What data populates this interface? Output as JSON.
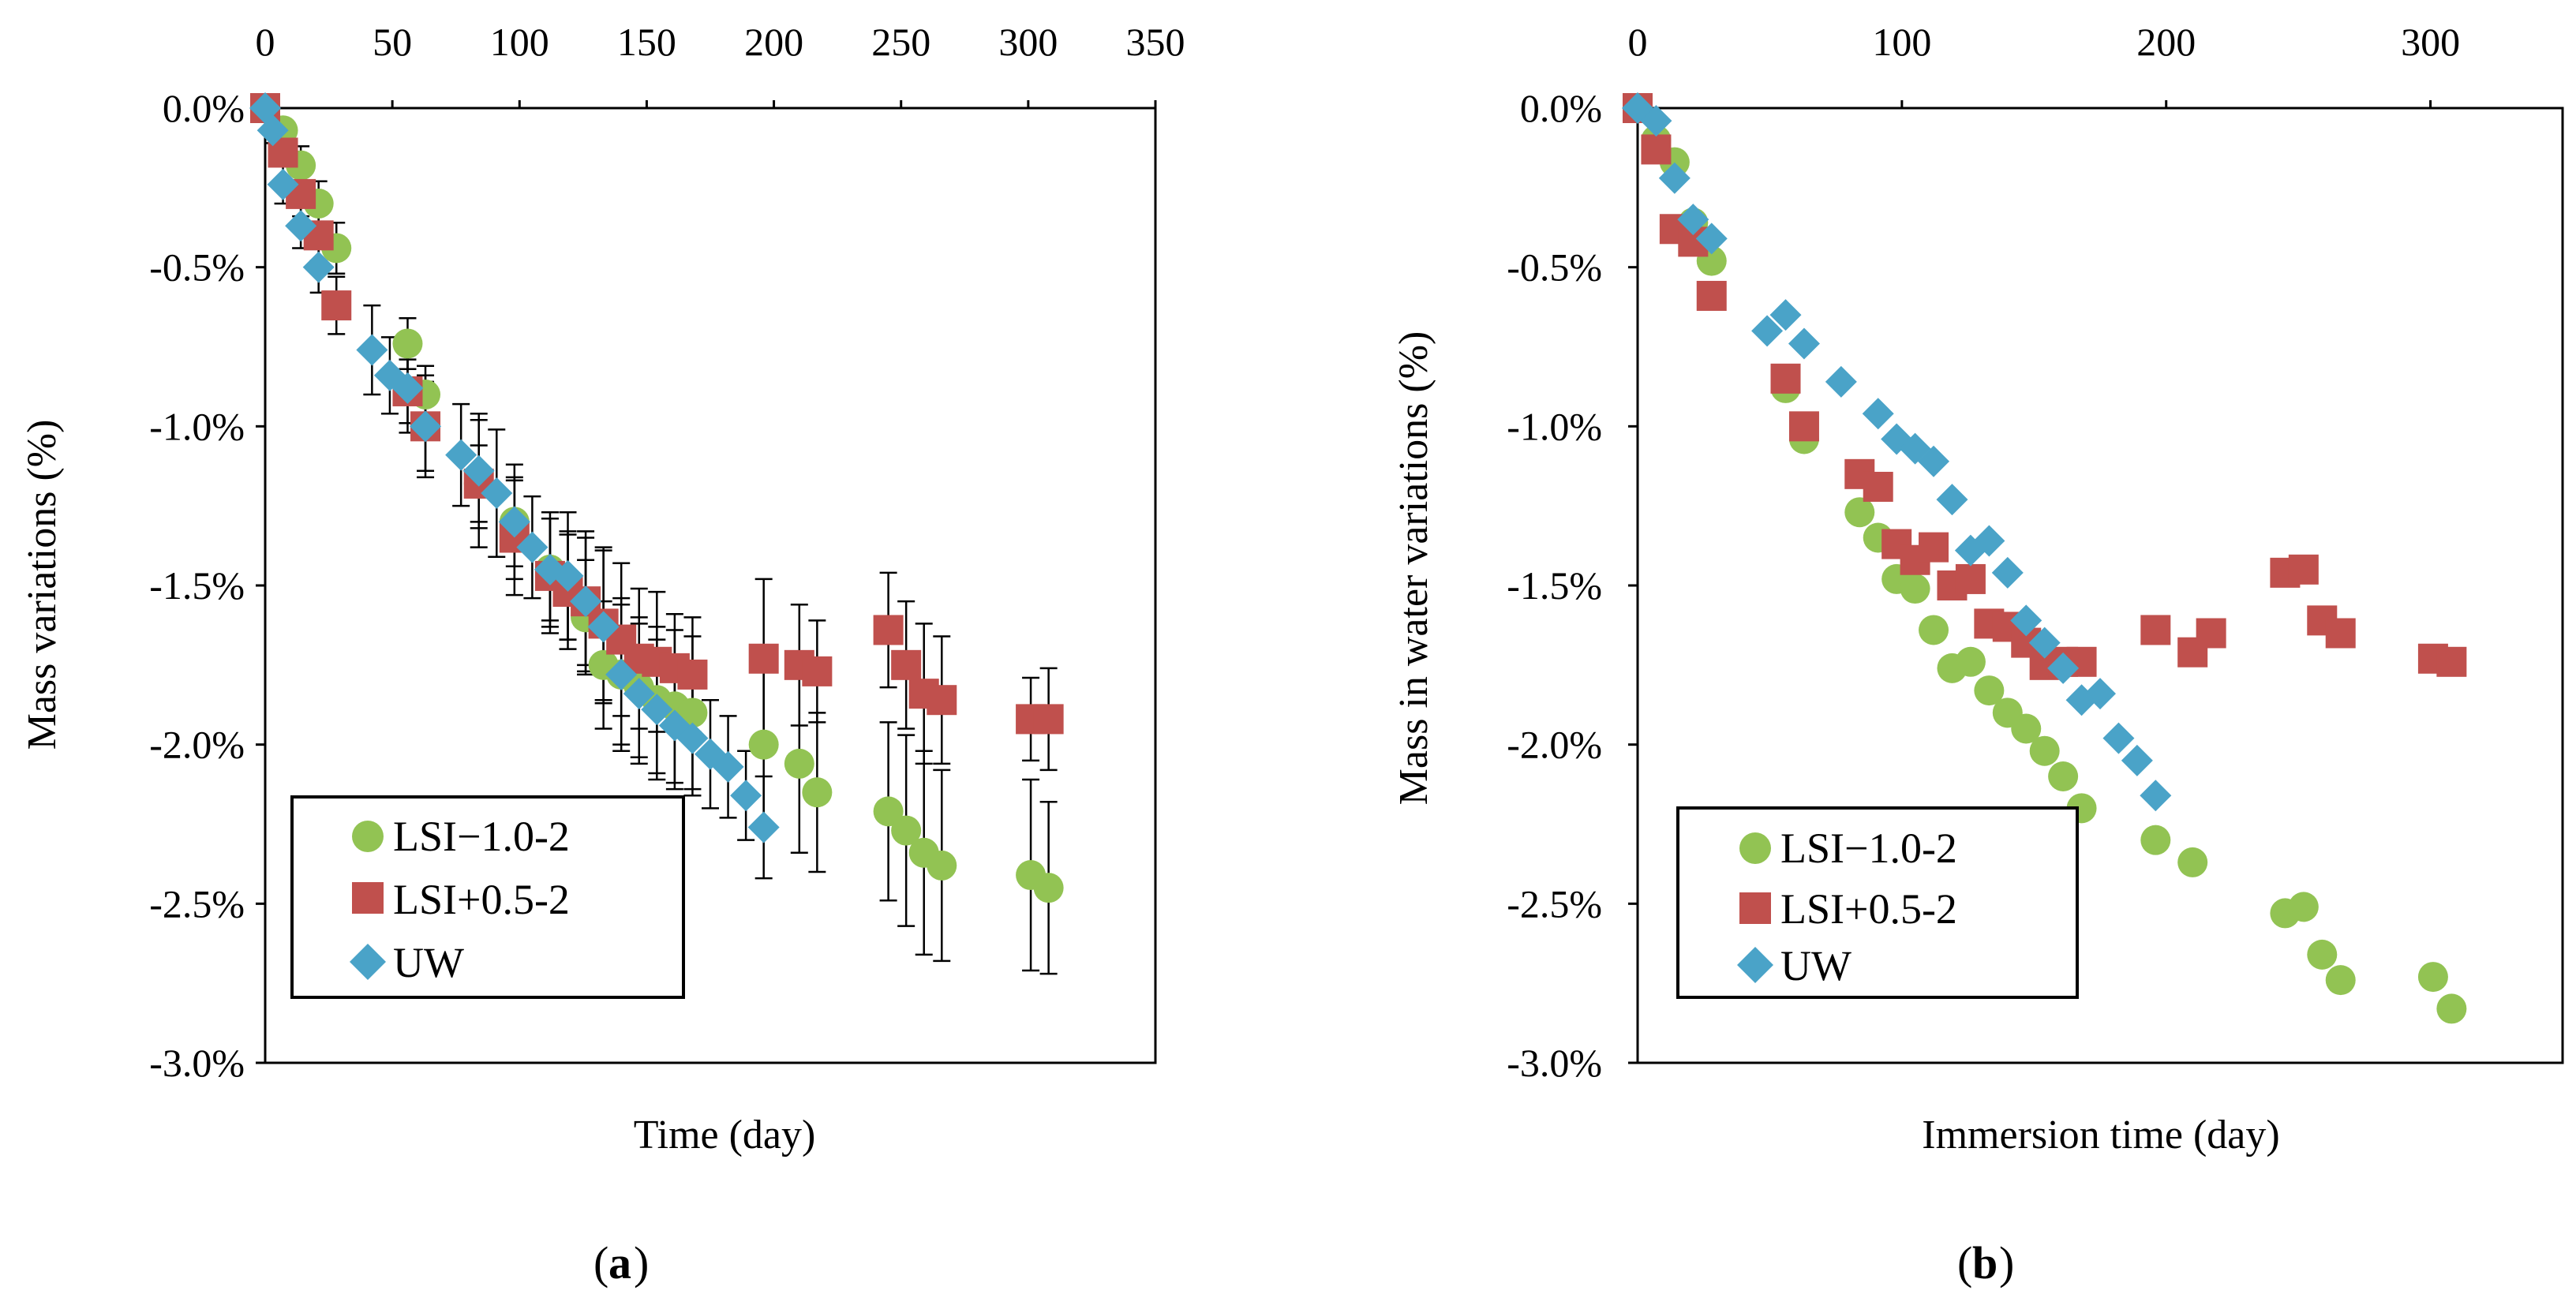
{
  "colors": {
    "green": "#92c353",
    "red": "#c0504d",
    "blue": "#4aa3c8"
  },
  "chart_data": [
    {
      "id": "a",
      "type": "scatter",
      "panel_label": "a",
      "xlabel": "Time (day)",
      "ylabel": "Mass variations  (%)",
      "x_axis_position": "top",
      "xlim": [
        0,
        350
      ],
      "ylim": [
        -3.0,
        0.0
      ],
      "xticks": [
        0,
        50,
        100,
        150,
        200,
        250,
        300,
        350
      ],
      "xtick_labels": [
        "0",
        "50",
        "100",
        "150",
        "200",
        "250",
        "300",
        "350"
      ],
      "yticks": [
        0.0,
        -0.5,
        -1.0,
        -1.5,
        -2.0,
        -2.5,
        -3.0
      ],
      "ytick_labels": [
        "0.0%",
        "-0.5%",
        "-1.0%",
        "-1.5%",
        "-2.0%",
        "-2.5%",
        "-3.0%"
      ],
      "grid": false,
      "legend_position": "bottom-left",
      "error_bars": true,
      "series": [
        {
          "name": "LSI−1.0-2",
          "marker": "circle",
          "color": "#92c353",
          "x": [
            0,
            7,
            14,
            21,
            28,
            56,
            63,
            84,
            98,
            112,
            119,
            126,
            133,
            140,
            147,
            154,
            161,
            168,
            196,
            210,
            217,
            245,
            252,
            259,
            266,
            301,
            308
          ],
          "y": [
            0.0,
            -0.07,
            -0.18,
            -0.3,
            -0.44,
            -0.74,
            -0.9,
            -1.18,
            -1.3,
            -1.45,
            -1.5,
            -1.6,
            -1.75,
            -1.78,
            -1.82,
            -1.86,
            -1.88,
            -1.9,
            -2.0,
            -2.06,
            -2.15,
            -2.21,
            -2.27,
            -2.34,
            -2.38,
            -2.41,
            -2.45
          ],
          "err": [
            0.0,
            0.03,
            0.06,
            0.07,
            0.08,
            0.08,
            0.09,
            0.12,
            0.14,
            0.16,
            0.17,
            0.18,
            0.2,
            0.22,
            0.22,
            0.23,
            0.24,
            0.24,
            0.26,
            0.28,
            0.25,
            0.28,
            0.3,
            0.32,
            0.3,
            0.3,
            0.27
          ]
        },
        {
          "name": "LSI+0.5-2",
          "marker": "square",
          "color": "#c0504d",
          "x": [
            0,
            7,
            14,
            21,
            28,
            56,
            63,
            84,
            98,
            112,
            119,
            126,
            133,
            140,
            147,
            154,
            161,
            168,
            196,
            210,
            217,
            245,
            252,
            259,
            266,
            301,
            308
          ],
          "y": [
            0.0,
            -0.14,
            -0.27,
            -0.4,
            -0.62,
            -0.89,
            -1.0,
            -1.18,
            -1.35,
            -1.47,
            -1.52,
            -1.55,
            -1.62,
            -1.67,
            -1.73,
            -1.74,
            -1.76,
            -1.78,
            -1.73,
            -1.75,
            -1.77,
            -1.64,
            -1.75,
            -1.84,
            -1.86,
            -1.92,
            -1.92
          ],
          "err": [
            0.0,
            0.04,
            0.07,
            0.08,
            0.09,
            0.1,
            0.14,
            0.2,
            0.18,
            0.18,
            0.18,
            0.2,
            0.24,
            0.24,
            0.22,
            0.22,
            0.17,
            0.18,
            0.25,
            0.19,
            0.16,
            0.18,
            0.2,
            0.22,
            0.2,
            0.13,
            0.16
          ]
        },
        {
          "name": "UW",
          "marker": "diamond",
          "color": "#4aa3c8",
          "x": [
            0,
            3,
            7,
            14,
            21,
            42,
            49,
            56,
            63,
            77,
            84,
            91,
            98,
            105,
            112,
            119,
            126,
            133,
            140,
            147,
            154,
            161,
            168,
            175,
            182,
            189,
            196
          ],
          "y": [
            0.0,
            -0.07,
            -0.24,
            -0.37,
            -0.5,
            -0.76,
            -0.84,
            -0.88,
            -1.0,
            -1.09,
            -1.14,
            -1.21,
            -1.3,
            -1.38,
            -1.45,
            -1.47,
            -1.55,
            -1.63,
            -1.78,
            -1.84,
            -1.89,
            -1.94,
            -1.98,
            -2.03,
            -2.07,
            -2.16,
            -2.26
          ],
          "err": [
            0.0,
            0.04,
            0.06,
            0.07,
            0.08,
            0.14,
            0.12,
            0.14,
            0.16,
            0.16,
            0.18,
            0.2,
            0.18,
            0.16,
            0.18,
            0.2,
            0.22,
            0.24,
            0.24,
            0.22,
            0.22,
            0.2,
            0.18,
            0.17,
            0.16,
            0.14,
            0.16
          ]
        }
      ]
    },
    {
      "id": "b",
      "type": "scatter",
      "panel_label": "b",
      "xlabel": "Immersion time (day)",
      "ylabel": "Mass in water variations  (%)",
      "x_axis_position": "top",
      "xlim": [
        0,
        350
      ],
      "ylim": [
        -3.0,
        0.0
      ],
      "xticks": [
        0,
        100,
        200,
        300
      ],
      "xtick_labels": [
        "0",
        "100",
        "200",
        "300"
      ],
      "yticks": [
        0.0,
        -0.5,
        -1.0,
        -1.5,
        -2.0,
        -2.5,
        -3.0
      ],
      "ytick_labels": [
        "0.0%",
        "-0.5%",
        "-1.0%",
        "-1.5%",
        "-2.0%",
        "-2.5%",
        "-3.0%"
      ],
      "grid": false,
      "legend_position": "bottom-left",
      "error_bars": false,
      "series": [
        {
          "name": "LSI−1.0-2",
          "marker": "circle",
          "color": "#92c353",
          "x": [
            0,
            7,
            14,
            21,
            28,
            56,
            63,
            84,
            91,
            98,
            105,
            112,
            119,
            126,
            133,
            140,
            147,
            154,
            161,
            168,
            196,
            210,
            245,
            252,
            259,
            266,
            301,
            308
          ],
          "y": [
            0.0,
            -0.1,
            -0.17,
            -0.36,
            -0.48,
            -0.88,
            -1.04,
            -1.27,
            -1.35,
            -1.48,
            -1.51,
            -1.64,
            -1.76,
            -1.74,
            -1.83,
            -1.9,
            -1.95,
            -2.02,
            -2.1,
            -2.2,
            -2.3,
            -2.37,
            -2.53,
            -2.51,
            -2.66,
            -2.74,
            -2.73,
            -2.83
          ]
        },
        {
          "name": "LSI+0.5-2",
          "marker": "square",
          "color": "#c0504d",
          "x": [
            0,
            7,
            14,
            21,
            28,
            56,
            63,
            84,
            91,
            98,
            105,
            112,
            119,
            126,
            133,
            140,
            147,
            154,
            161,
            168,
            196,
            210,
            217,
            245,
            252,
            259,
            266,
            301,
            308
          ],
          "y": [
            0.0,
            -0.13,
            -0.38,
            -0.42,
            -0.59,
            -0.85,
            -1.0,
            -1.15,
            -1.19,
            -1.37,
            -1.42,
            -1.38,
            -1.5,
            -1.48,
            -1.62,
            -1.63,
            -1.68,
            -1.75,
            -1.74,
            -1.74,
            -1.64,
            -1.71,
            -1.65,
            -1.46,
            -1.45,
            -1.61,
            -1.65,
            -1.73,
            -1.74
          ]
        },
        {
          "name": "UW",
          "marker": "diamond",
          "color": "#4aa3c8",
          "x": [
            0,
            7,
            14,
            21,
            28,
            49,
            56,
            63,
            77,
            91,
            98,
            105,
            112,
            119,
            126,
            133,
            140,
            147,
            154,
            161,
            168,
            175,
            182,
            189,
            196
          ],
          "y": [
            0.0,
            -0.04,
            -0.22,
            -0.35,
            -0.41,
            -0.7,
            -0.65,
            -0.74,
            -0.86,
            -0.96,
            -1.04,
            -1.07,
            -1.11,
            -1.23,
            -1.39,
            -1.36,
            -1.46,
            -1.61,
            -1.68,
            -1.76,
            -1.86,
            -1.84,
            -1.98,
            -2.05,
            -2.16
          ]
        }
      ]
    }
  ]
}
